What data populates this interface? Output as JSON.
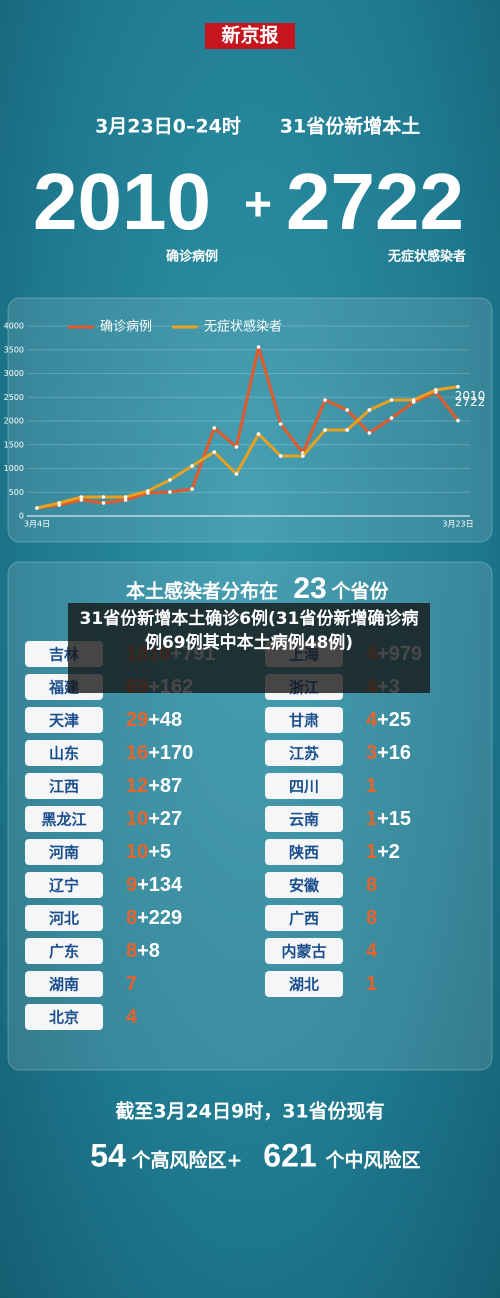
{
  "header": {
    "logo": "新京报",
    "date": "3月23日0–24时",
    "subtitle": "31省份新增本土",
    "confirmed": "2010",
    "plus": "+",
    "asymptomatic": "2722",
    "confirmed_label": "确诊病例",
    "asymptomatic_label": "无症状感染者"
  },
  "chart_data": {
    "type": "line",
    "categories": [
      "3月4日",
      null,
      null,
      null,
      null,
      null,
      null,
      null,
      null,
      null,
      null,
      null,
      null,
      null,
      null,
      null,
      null,
      null,
      null,
      "3月23日"
    ],
    "series": [
      {
        "name": "确诊病例",
        "color": "#e05a2b",
        "values": [
          168,
          232,
          337,
          274,
          337,
          484,
          505,
          568,
          1853,
          1453,
          3558,
          1937,
          1326,
          2442,
          2232,
          1747,
          2063,
          2400,
          2611,
          2010
        ]
      },
      {
        "name": "无症状感染者",
        "color": "#e8a020",
        "values": [
          168,
          274,
          400,
          400,
          400,
          526,
          758,
          1053,
          1347,
          884,
          1726,
          1263,
          1263,
          1811,
          1811,
          2232,
          2442,
          2442,
          2653,
          2722
        ]
      }
    ],
    "ylim": [
      0,
      4000
    ],
    "yticks": [
      0,
      500,
      1000,
      1500,
      2000,
      2500,
      3000,
      3500,
      4000
    ],
    "annotations": [
      "2722",
      "2010"
    ]
  },
  "table": {
    "title_pre": "本土感染者分布在",
    "title_num": "23",
    "title_post": "个省份",
    "left": [
      {
        "province": "吉林",
        "confirmed": "1810",
        "rest": "+791"
      },
      {
        "province": "福建",
        "confirmed": "69",
        "rest": "+162"
      },
      {
        "province": "天津",
        "confirmed": "29",
        "rest": "+48"
      },
      {
        "province": "山东",
        "confirmed": "16",
        "rest": "+170"
      },
      {
        "province": "江西",
        "confirmed": "12",
        "rest": "+87"
      },
      {
        "province": "黑龙江",
        "confirmed": "10",
        "rest": "+27"
      },
      {
        "province": "河南",
        "confirmed": "10",
        "rest": "+5"
      },
      {
        "province": "辽宁",
        "confirmed": "9",
        "rest": "+134"
      },
      {
        "province": "河北",
        "confirmed": "8",
        "rest": "+229"
      },
      {
        "province": "广东",
        "confirmed": "8",
        "rest": "+8"
      },
      {
        "province": "湖南",
        "confirmed": "7",
        "rest": null
      },
      {
        "province": "北京",
        "confirmed": "4",
        "rest": null
      }
    ],
    "right": [
      {
        "province": "上海",
        "confirmed": "4",
        "rest": "+979"
      },
      {
        "province": "浙江",
        "confirmed": "4",
        "rest": "+3"
      },
      {
        "province": "甘肃",
        "confirmed": "4",
        "rest": "+25"
      },
      {
        "province": "江苏",
        "confirmed": "3",
        "rest": "+16"
      },
      {
        "province": "四川",
        "confirmed": "1",
        "rest": null
      },
      {
        "province": "云南",
        "confirmed": "1",
        "rest": "+15"
      },
      {
        "province": "陕西",
        "confirmed": "1",
        "rest": "+2"
      },
      {
        "province": "安徽",
        "confirmed": "8",
        "rest": null
      },
      {
        "province": "广西",
        "confirmed": "8",
        "rest": null
      },
      {
        "province": "内蒙古",
        "confirmed": "4",
        "rest": null
      },
      {
        "province": "湖北",
        "confirmed": "1",
        "rest": null
      }
    ]
  },
  "overlay": {
    "caption": "31省份新增本土确诊6例(31省份新增确诊病例69例其中本土病例48例)"
  },
  "footer": {
    "line1": "截至3月24日9时，31省份现有",
    "high_num": "54",
    "high_text": "个高风险区+",
    "mid_num": "621",
    "mid_text": "个中风险区"
  }
}
